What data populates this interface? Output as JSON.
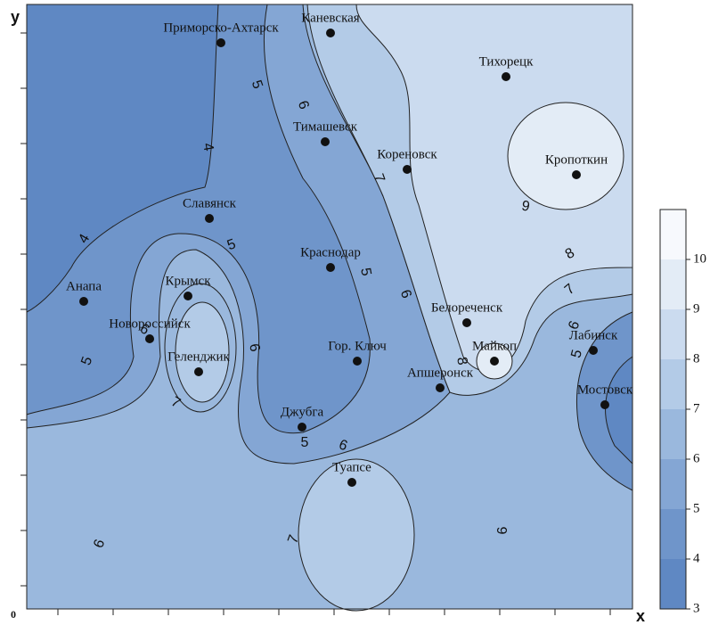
{
  "axes": {
    "x": "x",
    "y": "y",
    "origin": "0"
  },
  "cities": [
    "Приморско-Ахтарск",
    "Каневская",
    "Тихорецк",
    "Тимашевск",
    "Кореновск",
    "Кропоткин",
    "Славянск",
    "Краснодар",
    "Анапа",
    "Крымск",
    "Белореченск",
    "Новороссийск",
    "Майкоп",
    "Лабинск",
    "Гор. Ключ",
    "Геленджик",
    "Апшеронск",
    "Мостовск",
    "Джубга",
    "Туапсе"
  ],
  "contour_labels": [
    5,
    6,
    4,
    4,
    5,
    7,
    9,
    8,
    7,
    5,
    6,
    6,
    5,
    6,
    7,
    8,
    6,
    5,
    5,
    6,
    7,
    6,
    6
  ],
  "colorbar": {
    "ticks": [
      3,
      4,
      5,
      6,
      7,
      8,
      9,
      10
    ]
  }
}
